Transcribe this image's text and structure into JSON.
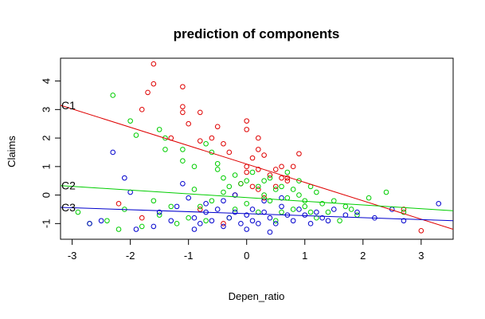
{
  "chart_data": {
    "type": "scatter",
    "title": "prediction of components",
    "xlabel": "Depen_ratio",
    "ylabel": "Claims",
    "xlim": [
      -3.2,
      3.55
    ],
    "ylim": [
      -1.55,
      4.8
    ],
    "xticks": [
      -3,
      -2,
      -1,
      0,
      1,
      2,
      3
    ],
    "yticks": [
      -1,
      0,
      1,
      2,
      3,
      4
    ],
    "grid": false,
    "legend": "none",
    "series": [
      {
        "name": "C1",
        "color": "#DF0000",
        "points": [
          [
            -1.6,
            4.6
          ],
          [
            -1.6,
            3.9
          ],
          [
            -1.8,
            3.0
          ],
          [
            -1.7,
            3.6
          ],
          [
            -1.1,
            3.8
          ],
          [
            -1.1,
            3.1
          ],
          [
            -1.1,
            2.9
          ],
          [
            -0.8,
            2.9
          ],
          [
            -0.5,
            2.4
          ],
          [
            -0.6,
            2.0
          ],
          [
            -0.8,
            1.9
          ],
          [
            -1.0,
            2.5
          ],
          [
            -1.3,
            2.0
          ],
          [
            -0.4,
            1.8
          ],
          [
            -0.3,
            1.5
          ],
          [
            0.0,
            2.6
          ],
          [
            0.0,
            2.3
          ],
          [
            0.2,
            2.0
          ],
          [
            0.2,
            1.6
          ],
          [
            0.1,
            1.3
          ],
          [
            0.0,
            1.0
          ],
          [
            0.3,
            1.4
          ],
          [
            0.5,
            0.9
          ],
          [
            0.6,
            1.0
          ],
          [
            0.8,
            1.0
          ],
          [
            0.9,
            1.45
          ],
          [
            0.7,
            0.6
          ],
          [
            0.7,
            0.5
          ],
          [
            0.4,
            0.7
          ],
          [
            0.2,
            0.2
          ],
          [
            0.2,
            0.9
          ],
          [
            0.0,
            0.8
          ],
          [
            -0.1,
            0.4
          ],
          [
            -0.2,
            0.0
          ],
          [
            0.3,
            -0.1
          ],
          [
            0.5,
            0.3
          ],
          [
            -0.8,
            -0.5
          ],
          [
            2.7,
            -0.5
          ],
          [
            3.0,
            -1.25
          ],
          [
            -2.2,
            -0.3
          ],
          [
            -1.8,
            -0.8
          ],
          [
            -0.4,
            -1.0
          ],
          [
            0.1,
            0.3
          ],
          [
            0.6,
            0.6
          ]
        ]
      },
      {
        "name": "C2",
        "color": "#00CD00",
        "points": [
          [
            -2.3,
            3.5
          ],
          [
            -2.0,
            2.6
          ],
          [
            -1.9,
            2.1
          ],
          [
            -1.5,
            2.3
          ],
          [
            -1.4,
            2.0
          ],
          [
            -1.4,
            1.6
          ],
          [
            -1.1,
            1.6
          ],
          [
            -1.1,
            1.2
          ],
          [
            -0.9,
            1.0
          ],
          [
            -0.7,
            1.8
          ],
          [
            -0.6,
            1.5
          ],
          [
            -0.5,
            1.1
          ],
          [
            -0.5,
            0.9
          ],
          [
            -0.4,
            0.6
          ],
          [
            -0.3,
            0.3
          ],
          [
            -0.2,
            0.7
          ],
          [
            -0.1,
            0.4
          ],
          [
            0.0,
            0.5
          ],
          [
            0.1,
            0.8
          ],
          [
            0.2,
            0.3
          ],
          [
            0.3,
            0.0
          ],
          [
            0.4,
            0.6
          ],
          [
            0.5,
            0.2
          ],
          [
            0.6,
            0.3
          ],
          [
            0.7,
            -0.1
          ],
          [
            0.8,
            0.2
          ],
          [
            0.9,
            0.0
          ],
          [
            1.0,
            -0.2
          ],
          [
            1.1,
            0.3
          ],
          [
            1.2,
            0.1
          ],
          [
            1.3,
            -0.3
          ],
          [
            1.5,
            -0.2
          ],
          [
            1.7,
            -0.4
          ],
          [
            2.1,
            -0.1
          ],
          [
            2.4,
            0.1
          ],
          [
            2.7,
            -0.6
          ],
          [
            -2.9,
            -0.6
          ],
          [
            -2.7,
            -1.0
          ],
          [
            -2.4,
            -0.9
          ],
          [
            -2.2,
            -1.2
          ],
          [
            -1.8,
            -1.1
          ],
          [
            -1.5,
            -0.7
          ],
          [
            -1.3,
            -0.4
          ],
          [
            -1.0,
            -0.8
          ],
          [
            -0.8,
            -0.4
          ],
          [
            -0.6,
            -0.2
          ],
          [
            -0.4,
            0.1
          ],
          [
            -0.2,
            -0.5
          ],
          [
            0.0,
            -0.3
          ],
          [
            0.2,
            -0.6
          ],
          [
            0.4,
            -0.2
          ],
          [
            0.6,
            -0.6
          ],
          [
            0.8,
            -0.5
          ],
          [
            1.0,
            -0.4
          ],
          [
            1.2,
            -0.8
          ],
          [
            1.4,
            -0.6
          ],
          [
            1.6,
            -0.9
          ],
          [
            1.8,
            -0.5
          ],
          [
            -1.6,
            -0.2
          ],
          [
            -0.9,
            0.2
          ],
          [
            -0.7,
            -0.9
          ],
          [
            0.3,
            0.5
          ],
          [
            0.7,
            0.8
          ],
          [
            1.1,
            -0.6
          ],
          [
            -1.2,
            -1.0
          ],
          [
            -0.3,
            -0.8
          ],
          [
            0.5,
            -0.9
          ],
          [
            1.9,
            -0.7
          ],
          [
            -2.1,
            -0.5
          ],
          [
            0.9,
            0.5
          ]
        ]
      },
      {
        "name": "C3",
        "color": "#0000CD",
        "points": [
          [
            -2.3,
            1.5
          ],
          [
            -2.1,
            0.6
          ],
          [
            -2.0,
            0.1
          ],
          [
            -1.5,
            -0.6
          ],
          [
            -1.2,
            -0.4
          ],
          [
            -1.1,
            0.4
          ],
          [
            -1.0,
            -0.1
          ],
          [
            -0.9,
            -0.8
          ],
          [
            -0.8,
            -1.0
          ],
          [
            -0.7,
            -0.6
          ],
          [
            -0.6,
            -0.9
          ],
          [
            -0.5,
            -0.5
          ],
          [
            -0.4,
            -0.2
          ],
          [
            -0.3,
            -0.8
          ],
          [
            -0.2,
            -0.6
          ],
          [
            -0.1,
            -1.0
          ],
          [
            0.0,
            -0.7
          ],
          [
            0.1,
            -0.5
          ],
          [
            0.1,
            -0.9
          ],
          [
            0.2,
            -1.0
          ],
          [
            0.3,
            -0.6
          ],
          [
            0.4,
            -0.8
          ],
          [
            0.5,
            -1.0
          ],
          [
            0.6,
            -0.4
          ],
          [
            0.7,
            -0.7
          ],
          [
            0.8,
            -0.9
          ],
          [
            0.9,
            -0.5
          ],
          [
            1.0,
            -0.7
          ],
          [
            1.1,
            -1.0
          ],
          [
            1.2,
            -0.6
          ],
          [
            1.3,
            -0.8
          ],
          [
            1.4,
            -0.9
          ],
          [
            1.5,
            -0.5
          ],
          [
            1.7,
            -0.7
          ],
          [
            1.9,
            -0.6
          ],
          [
            2.2,
            -0.8
          ],
          [
            2.5,
            -0.5
          ],
          [
            2.7,
            -0.9
          ],
          [
            3.3,
            -0.3
          ],
          [
            -2.7,
            -1.0
          ],
          [
            -2.5,
            -0.9
          ],
          [
            -1.9,
            -1.2
          ],
          [
            -1.6,
            -1.1
          ],
          [
            -1.3,
            -0.9
          ],
          [
            -0.9,
            -1.2
          ],
          [
            -0.4,
            -1.1
          ],
          [
            0.0,
            -1.2
          ],
          [
            0.4,
            -1.3
          ],
          [
            -0.2,
            0.0
          ],
          [
            0.6,
            -0.1
          ],
          [
            -0.7,
            -0.3
          ],
          [
            0.3,
            -0.2
          ]
        ]
      }
    ],
    "lines": [
      {
        "label": "C1",
        "color": "#DF0000",
        "y_at_xmin": 3.15,
        "y_at_xmax": -1.2
      },
      {
        "label": "C2",
        "color": "#00CD00",
        "y_at_xmin": 0.33,
        "y_at_xmax": -0.55
      },
      {
        "label": "C3",
        "color": "#0000CD",
        "y_at_xmin": -0.43,
        "y_at_xmax": -0.9
      }
    ]
  }
}
